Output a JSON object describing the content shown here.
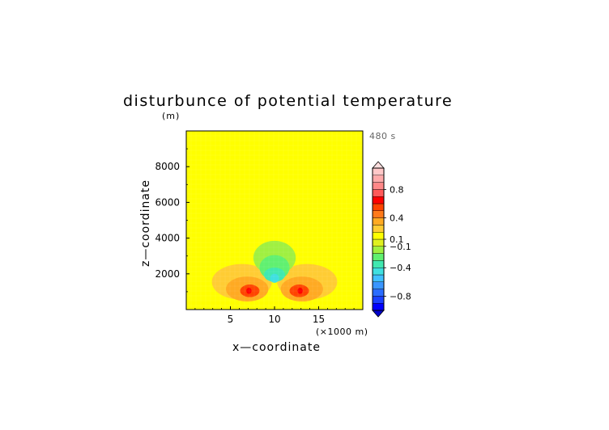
{
  "chart_data": {
    "type": "heatmap",
    "title": "disturbunce of potential temperature",
    "ylabel": "z—coordinate",
    "xlabel": "x—coordinate",
    "y_unit": "(m)",
    "x_unit": "(×1000 m)",
    "time_label": "480 s",
    "xlim": [
      0,
      20
    ],
    "ylim": [
      0,
      10000
    ],
    "x_ticks": [
      5,
      10,
      15
    ],
    "y_ticks": [
      2000,
      4000,
      6000,
      8000
    ],
    "colorbar": {
      "levels": [
        -1.0,
        -0.9,
        -0.8,
        -0.7,
        -0.6,
        -0.5,
        -0.4,
        -0.3,
        -0.2,
        -0.1,
        0.1,
        0.2,
        0.3,
        0.4,
        0.5,
        0.6,
        0.7,
        0.8,
        0.9,
        1.0
      ],
      "labels": [
        {
          "text": "0.8",
          "value": 0.8
        },
        {
          "text": "0.4",
          "value": 0.4
        },
        {
          "text": "0.1",
          "value": 0.1
        },
        {
          "text": "−0.1",
          "value": -0.1
        },
        {
          "text": "−0.4",
          "value": -0.4
        },
        {
          "text": "−0.8",
          "value": -0.8
        }
      ],
      "colors": [
        "#0000ff",
        "#1a40ff",
        "#2a6cff",
        "#3a96ff",
        "#40c0ff",
        "#3fe0e0",
        "#40e8b0",
        "#60f070",
        "#a0f040",
        "#e0f020",
        "#ffff00",
        "#ffcc33",
        "#ffaa22",
        "#ff7a1a",
        "#ff4400",
        "#ff0000",
        "#ff5a5a",
        "#ff8888",
        "#ffaaaa",
        "#ffc8c8"
      ],
      "extend": "both"
    },
    "features": [
      {
        "shape": "lobe",
        "level": 0.1,
        "x": 10,
        "z": 5400,
        "rx": 2.2,
        "rz": 3000
      },
      {
        "shape": "ellipse",
        "level": 0.1,
        "x": 10,
        "z": 1500,
        "rx": 8.6,
        "rz": 1300
      },
      {
        "shape": "ellipse",
        "level": 0.1,
        "x": 0.3,
        "z": 1100,
        "rx": 3.2,
        "rz": 4200
      },
      {
        "shape": "ellipse",
        "level": 0.1,
        "x": 19.7,
        "z": 1100,
        "rx": 3.2,
        "rz": 4200
      },
      {
        "shape": "ellipse",
        "level": 0.2,
        "x": 6.3,
        "z": 1550,
        "rx": 3.4,
        "rz": 1000
      },
      {
        "shape": "ellipse",
        "level": 0.2,
        "x": 13.7,
        "z": 1550,
        "rx": 3.4,
        "rz": 1000
      },
      {
        "shape": "ellipse",
        "level": 0.3,
        "x": 6.9,
        "z": 1150,
        "rx": 2.4,
        "rz": 700
      },
      {
        "shape": "ellipse",
        "level": 0.3,
        "x": 13.1,
        "z": 1150,
        "rx": 2.4,
        "rz": 700
      },
      {
        "shape": "ellipse",
        "level": 0.5,
        "x": 7.2,
        "z": 1050,
        "rx": 1.1,
        "rz": 350
      },
      {
        "shape": "ellipse",
        "level": 0.5,
        "x": 12.8,
        "z": 1050,
        "rx": 1.1,
        "rz": 350
      },
      {
        "shape": "ellipse",
        "level": 0.6,
        "x": 7.1,
        "z": 1050,
        "rx": 0.3,
        "rz": 170
      },
      {
        "shape": "ellipse",
        "level": 0.6,
        "x": 12.9,
        "z": 1050,
        "rx": 0.3,
        "rz": 170
      },
      {
        "shape": "ellipse",
        "level": -0.1,
        "x": 10,
        "z": 2900,
        "rx": 2.4,
        "rz": 950
      },
      {
        "shape": "ellipse",
        "level": -0.2,
        "x": 10,
        "z": 2350,
        "rx": 1.7,
        "rz": 700
      },
      {
        "shape": "ellipse",
        "level": -0.3,
        "x": 10,
        "z": 1950,
        "rx": 1.2,
        "rz": 400
      },
      {
        "shape": "ellipse",
        "level": -0.4,
        "x": 10,
        "z": 1750,
        "rx": 0.5,
        "rz": 250
      }
    ]
  }
}
